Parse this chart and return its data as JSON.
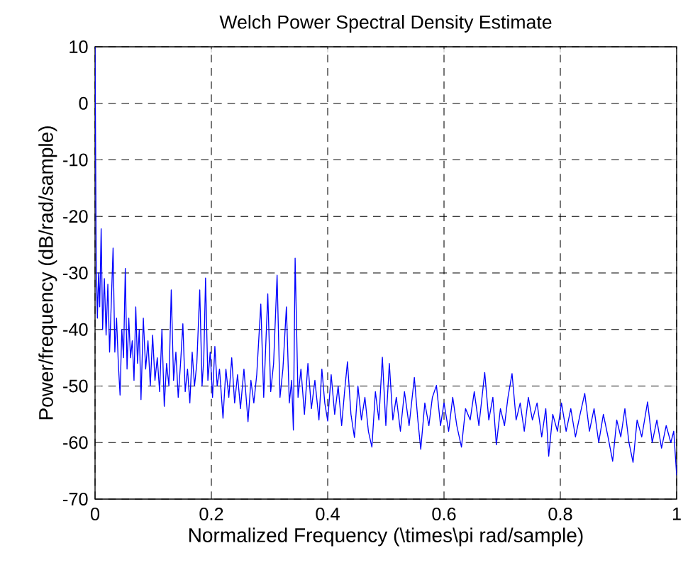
{
  "chart_data": {
    "type": "line",
    "title": "Welch Power Spectral Density Estimate",
    "xlabel": "Normalized Frequency  (\\times\\pi rad/sample)",
    "ylabel": "Power/frequency (dB/rad/sample)",
    "xlim": [
      0,
      1
    ],
    "ylim": [
      -70,
      10
    ],
    "xticks": [
      0,
      0.2,
      0.4,
      0.6,
      0.8,
      1
    ],
    "yticks": [
      -70,
      -60,
      -50,
      -40,
      -30,
      -20,
      -10,
      0,
      10
    ],
    "grid": true,
    "series": [
      {
        "color": "#0000ff",
        "x": [
          0,
          0.002,
          0.004,
          0.006,
          0.008,
          0.0105,
          0.013,
          0.016,
          0.019,
          0.022,
          0.025,
          0.028,
          0.031,
          0.034,
          0.037,
          0.04,
          0.043,
          0.046,
          0.049,
          0.052,
          0.055,
          0.058,
          0.061,
          0.064,
          0.067,
          0.07,
          0.073,
          0.076,
          0.079,
          0.083,
          0.087,
          0.091,
          0.095,
          0.099,
          0.103,
          0.107,
          0.111,
          0.115,
          0.119,
          0.123,
          0.127,
          0.131,
          0.135,
          0.139,
          0.143,
          0.147,
          0.151,
          0.155,
          0.159,
          0.163,
          0.167,
          0.171,
          0.175,
          0.18,
          0.184,
          0.187,
          0.19,
          0.194,
          0.198,
          0.202,
          0.206,
          0.21,
          0.214,
          0.22,
          0.225,
          0.23,
          0.235,
          0.24,
          0.245,
          0.25,
          0.256,
          0.263,
          0.268,
          0.273,
          0.278,
          0.285,
          0.29,
          0.297,
          0.302,
          0.307,
          0.313,
          0.318,
          0.323,
          0.329,
          0.334,
          0.338,
          0.341,
          0.344,
          0.349,
          0.354,
          0.36,
          0.366,
          0.372,
          0.378,
          0.385,
          0.39,
          0.395,
          0.4,
          0.406,
          0.412,
          0.418,
          0.424,
          0.429,
          0.434,
          0.44,
          0.446,
          0.452,
          0.458,
          0.464,
          0.47,
          0.476,
          0.482,
          0.488,
          0.494,
          0.5,
          0.506,
          0.512,
          0.518,
          0.525,
          0.532,
          0.54,
          0.549,
          0.555,
          0.56,
          0.567,
          0.574,
          0.58,
          0.587,
          0.594,
          0.6,
          0.608,
          0.615,
          0.622,
          0.63,
          0.637,
          0.645,
          0.652,
          0.66,
          0.67,
          0.677,
          0.684,
          0.69,
          0.697,
          0.704,
          0.71,
          0.717,
          0.724,
          0.731,
          0.738,
          0.745,
          0.752,
          0.76,
          0.768,
          0.775,
          0.78,
          0.787,
          0.795,
          0.802,
          0.81,
          0.818,
          0.826,
          0.834,
          0.842,
          0.85,
          0.858,
          0.866,
          0.874,
          0.882,
          0.89,
          0.897,
          0.904,
          0.911,
          0.918,
          0.925,
          0.932,
          0.94,
          0.95,
          0.958,
          0.966,
          0.974,
          0.982,
          0.99,
          0.995,
          1.0
        ],
        "values": [
          10,
          -28,
          -38,
          -30,
          -36,
          -22.2,
          -40,
          -31,
          -41,
          -32,
          -44,
          -35,
          -25.6,
          -44,
          -38,
          -46,
          -51.6,
          -40,
          -45,
          -29.2,
          -47,
          -38,
          -45,
          -42,
          -49,
          -36,
          -46,
          -40,
          -52.4,
          -38,
          -47,
          -42,
          -50,
          -41,
          -49,
          -45,
          -51,
          -40,
          -53.6,
          -46,
          -50,
          -33,
          -49,
          -44,
          -52,
          -46,
          -39,
          -51,
          -47,
          -53,
          -44,
          -50,
          -46,
          -33,
          -50,
          -45,
          -30.9,
          -49,
          -44,
          -52,
          -43,
          -50,
          -47,
          -55.7,
          -47,
          -52,
          -45,
          -53,
          -48,
          -54,
          -47,
          -56.3,
          -49,
          -53,
          -48,
          -35.5,
          -52,
          -33.7,
          -51,
          -46,
          -30.4,
          -52,
          -47,
          -36,
          -53,
          -49,
          -57.8,
          -27.4,
          -52,
          -47,
          -55,
          -46,
          -54,
          -49,
          -56,
          -47,
          -53,
          -56.2,
          -48,
          -55,
          -50,
          -57,
          -51,
          -45.7,
          -55,
          -59.1,
          -50,
          -56,
          -52,
          -58,
          -60.8,
          -51,
          -56,
          -44.9,
          -57,
          -46,
          -56,
          -52,
          -58,
          -51,
          -57,
          -48.5,
          -56,
          -61.2,
          -53,
          -57,
          -52,
          -49.9,
          -57,
          -53,
          -58,
          -52,
          -57,
          -60.8,
          -54,
          -56,
          -51,
          -57,
          -47.6,
          -56,
          -52,
          -60.4,
          -54,
          -57,
          -52,
          -47.8,
          -56,
          -53,
          -58,
          -52,
          -56,
          -53,
          -59,
          -54,
          -62.4,
          -55,
          -58,
          -53,
          -58,
          -54,
          -59,
          -55,
          -51.3,
          -58,
          -54,
          -60,
          -55,
          -59,
          -63.3,
          -56,
          -59,
          -54,
          -60,
          -63.5,
          -56,
          -59,
          -52.8,
          -60,
          -56,
          -61,
          -57,
          -60,
          -58,
          -65.8
        ]
      }
    ]
  }
}
